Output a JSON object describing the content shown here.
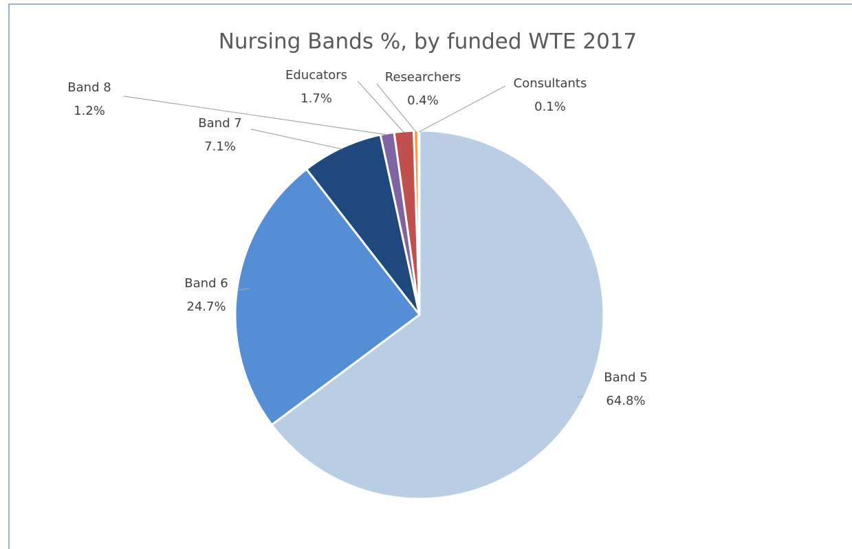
{
  "chart_data": {
    "type": "pie",
    "title": "Nursing Bands %, by funded WTE 2017",
    "categories": [
      "Band 5",
      "Band 6",
      "Band 7",
      "Band 8",
      "Educators",
      "Researchers",
      "Consultants"
    ],
    "values": [
      64.8,
      24.7,
      7.1,
      1.2,
      1.7,
      0.4,
      0.1
    ],
    "value_labels": [
      "64.8%",
      "24.7%",
      "7.1%",
      "1.2%",
      "1.7%",
      "0.4%",
      "0.1%"
    ],
    "colors": [
      "#b9cde5",
      "#558ed5",
      "#1f497d",
      "#8064a2",
      "#c0504d",
      "#f79646",
      "#f2dcdb"
    ]
  }
}
